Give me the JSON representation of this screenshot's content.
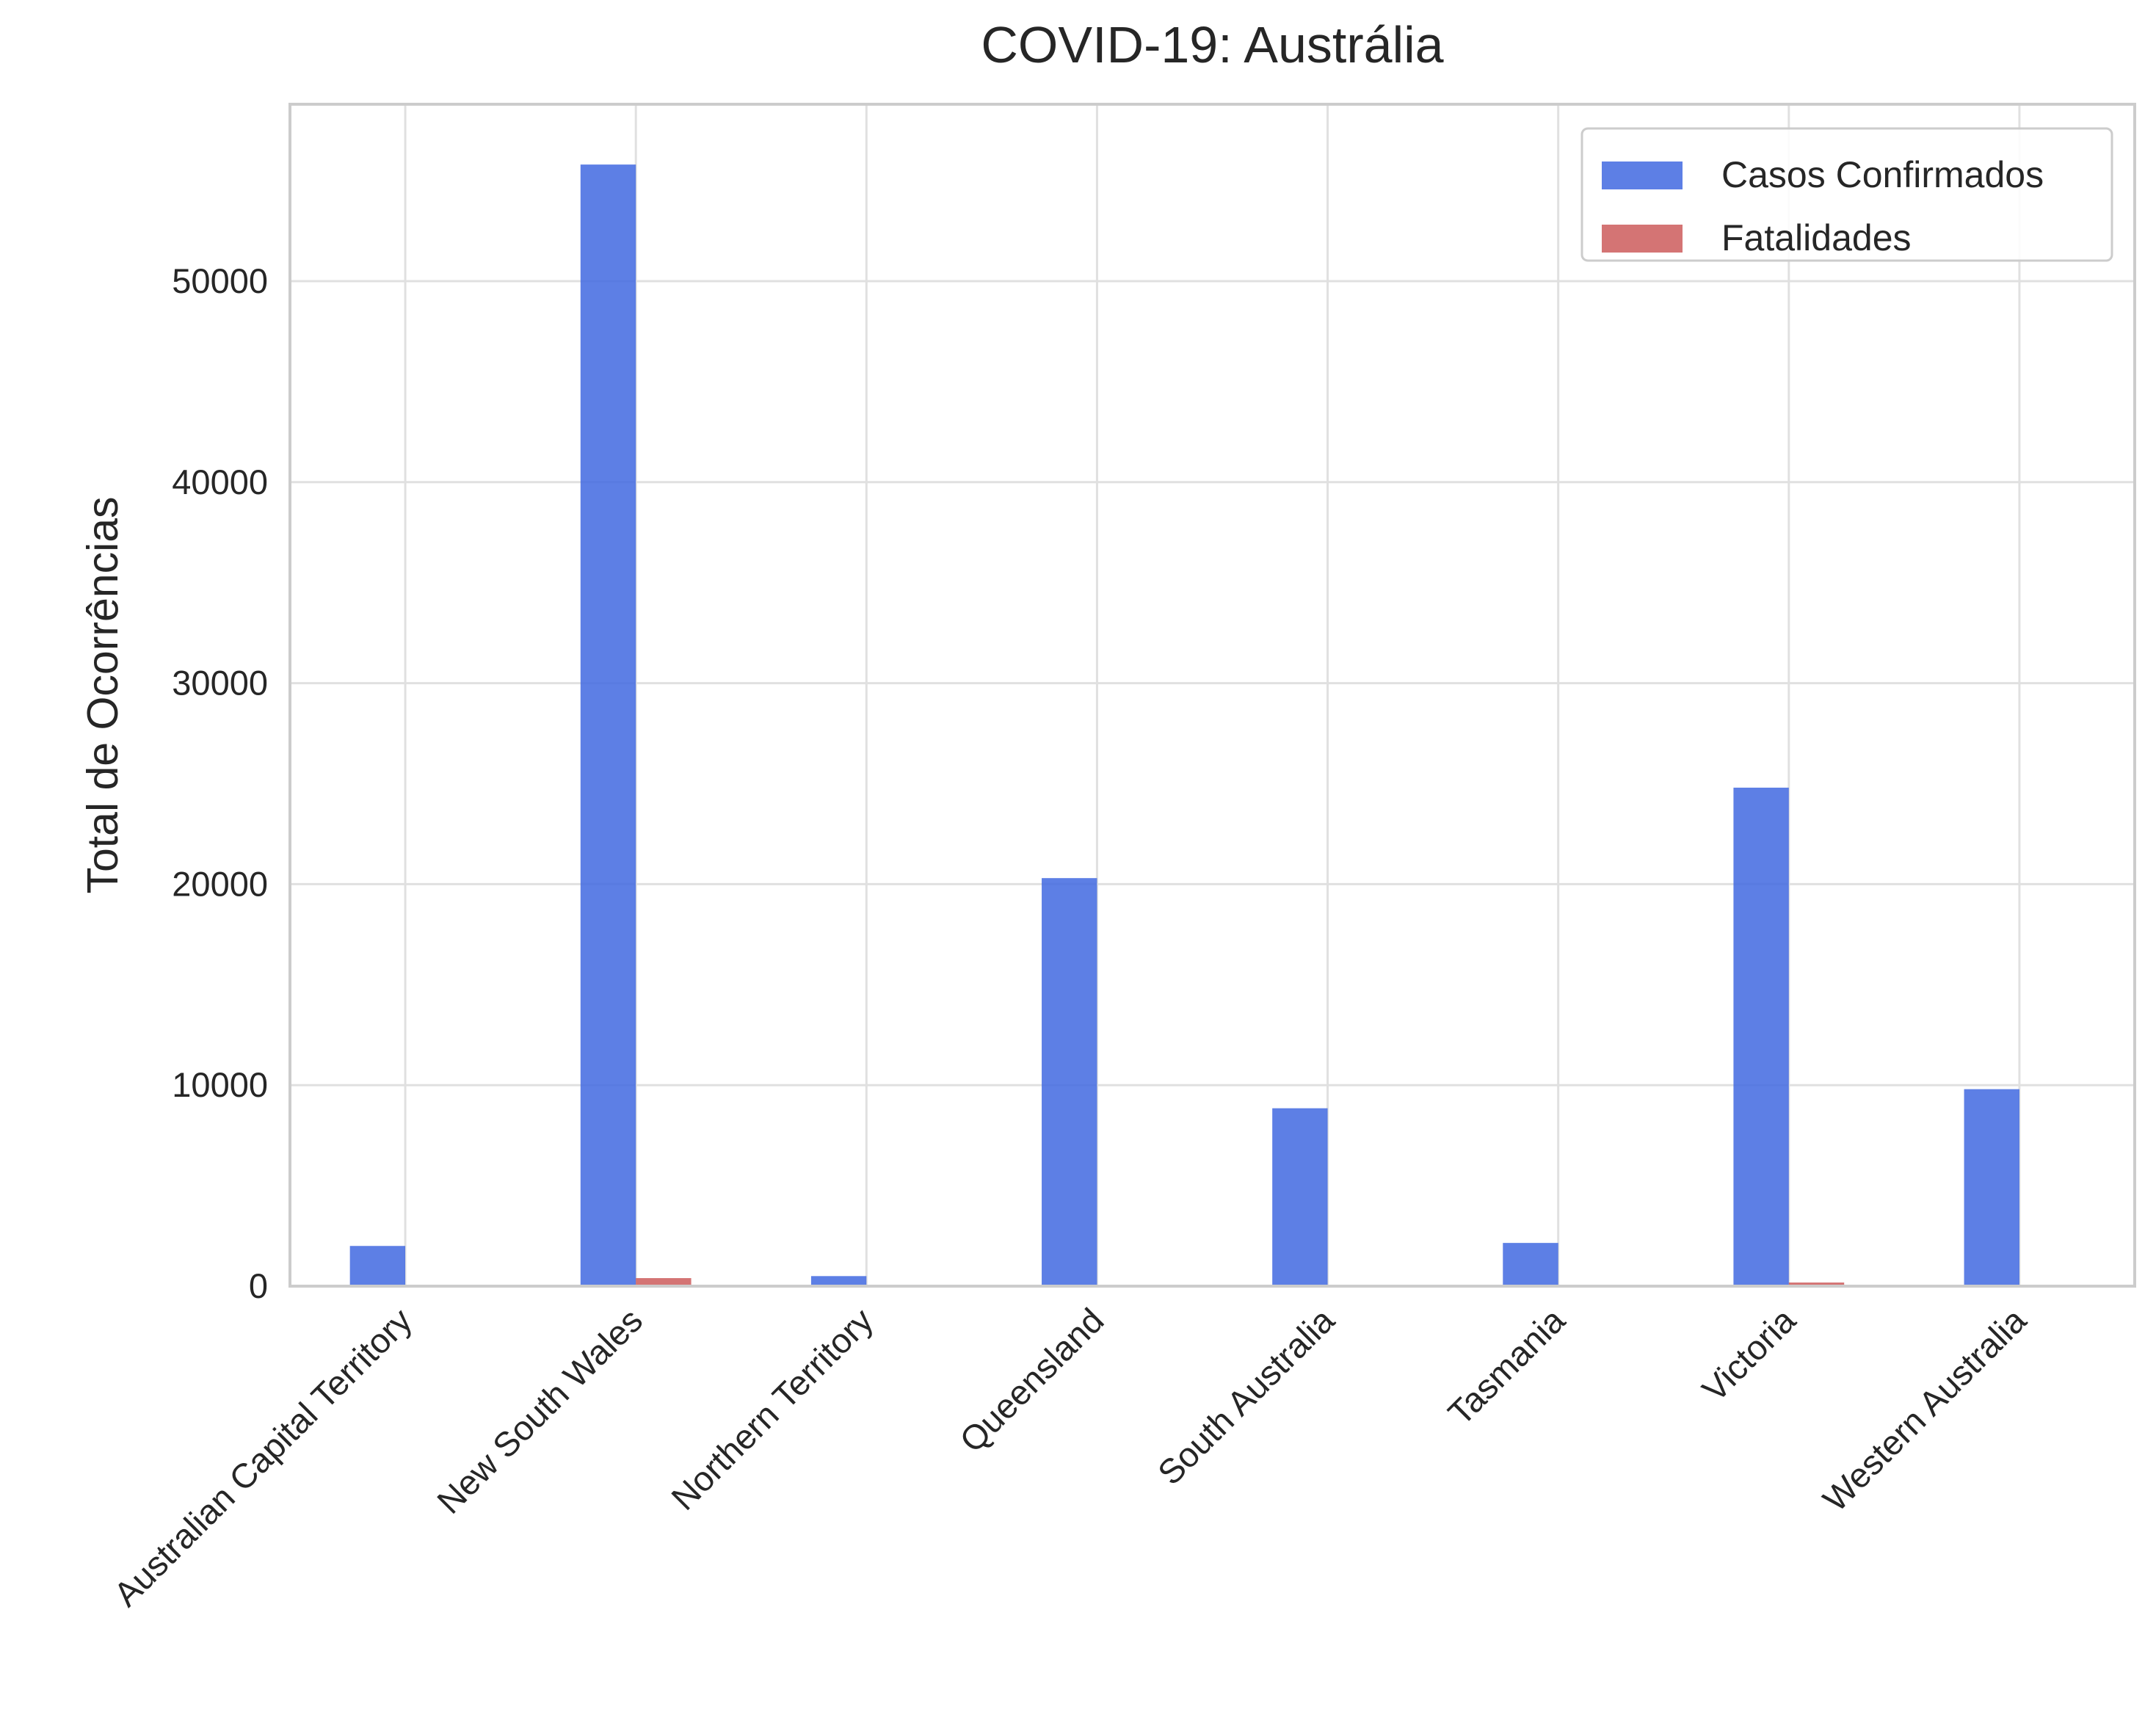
{
  "chart_data": {
    "type": "bar",
    "title": "COVID-19: Austrália",
    "xlabel": "",
    "ylabel": "Total de Ocorrências",
    "categories": [
      "Australian Capital Territory",
      "New South Wales",
      "Northern Territory",
      "Queensland",
      "South Australia",
      "Tasmania",
      "Victoria",
      "Western Australia"
    ],
    "series": [
      {
        "name": "Casos Confirmados",
        "color": "#4169e1",
        "values": [
          2000,
          55800,
          500,
          20300,
          8850,
          2150,
          24800,
          9800
        ]
      },
      {
        "name": "Fatalidades",
        "color": "#cd5c5c",
        "values": [
          10,
          400,
          1,
          40,
          5,
          15,
          180,
          15
        ]
      }
    ],
    "ylim": [
      0,
      58800
    ],
    "yticks": [
      0,
      10000,
      20000,
      30000,
      40000,
      50000
    ],
    "ytick_labels": [
      "0",
      "10000",
      "20000",
      "30000",
      "40000",
      "50000"
    ],
    "grid": true,
    "legend_position": "top-right"
  }
}
